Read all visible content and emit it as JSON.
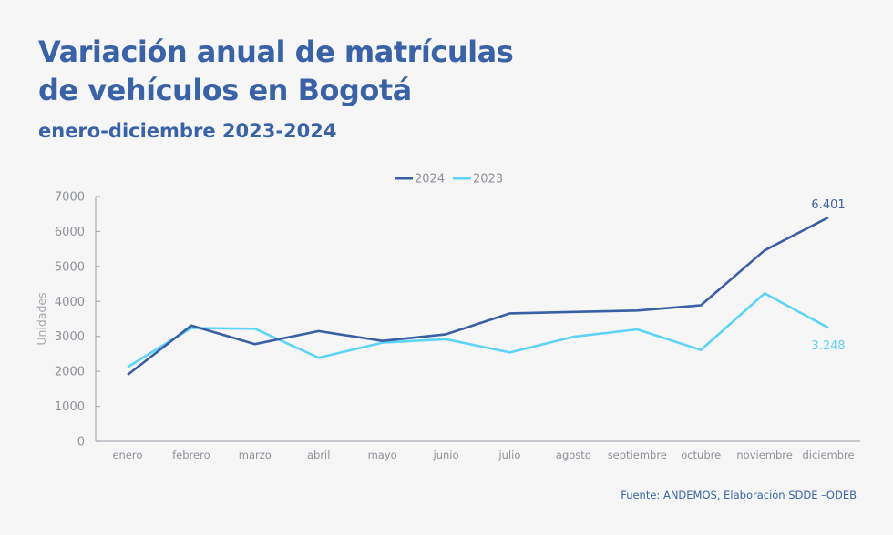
{
  "header": {
    "title_line1": "Variación anual de matrículas",
    "title_line2": "de vehículos en Bogotá",
    "subtitle": "enero-diciembre 2023-2024"
  },
  "source": "Fuente: ANDEMOS, Elaboración SDDE –ODEB",
  "chart_data": {
    "type": "line",
    "title": "Variación anual de matrículas de vehículos en Bogotá",
    "subtitle": "enero-diciembre 2023-2024",
    "xlabel": "",
    "ylabel": "Unidades",
    "ylim": [
      0,
      7000
    ],
    "yticks": [
      0,
      1000,
      2000,
      3000,
      4000,
      5000,
      6000,
      7000
    ],
    "ytick_labels": [
      "0",
      "1000",
      "2000",
      "3000",
      "4000",
      "5000",
      "6000",
      "7000"
    ],
    "grid": false,
    "legend_position": "top-center",
    "categories": [
      "enero",
      "febrero",
      "marzo",
      "abril",
      "mayo",
      "junio",
      "julio",
      "agosto",
      "septiembre",
      "octubre",
      "noviembre",
      "diciembre"
    ],
    "series": [
      {
        "name": "2024",
        "color": "#3a5fa5",
        "values": [
          1900,
          3310,
          2780,
          3150,
          2870,
          3060,
          3660,
          3700,
          3740,
          3890,
          5460,
          6401
        ],
        "end_label": "6.401"
      },
      {
        "name": "2023",
        "color": "#5dd3f5",
        "values": [
          2120,
          3240,
          3220,
          2390,
          2820,
          2920,
          2540,
          2990,
          3200,
          2610,
          4230,
          3248
        ],
        "end_label": "3.248"
      }
    ]
  }
}
